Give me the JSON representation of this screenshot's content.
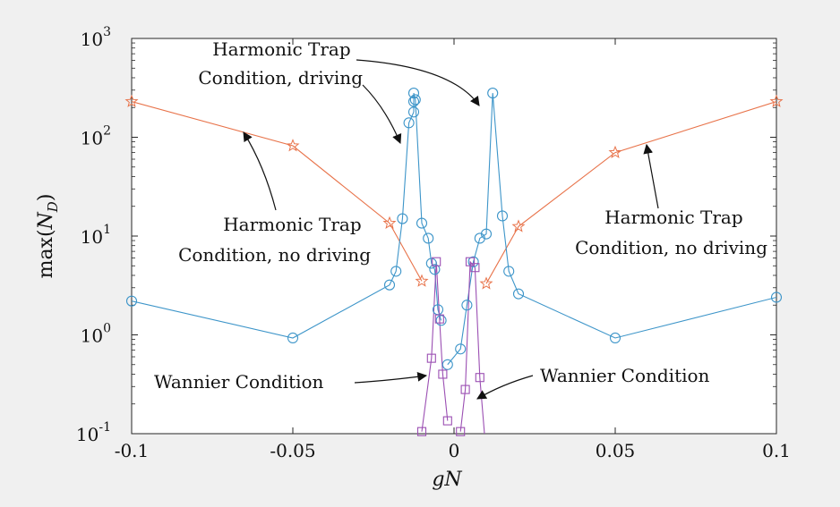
{
  "chart_data": {
    "type": "line",
    "title": "",
    "xlabel": "gN",
    "ylabel": "max(N_D)",
    "ylabel_parts": {
      "prefix": "max(",
      "var": "N",
      "sub": "D",
      "suffix": ")"
    },
    "xlim": [
      -0.1,
      0.1
    ],
    "ylim": [
      0.1,
      1000
    ],
    "yscale": "log",
    "grid": false,
    "legend": "none",
    "xticks": [
      {
        "value": -0.1,
        "label": "-0.1"
      },
      {
        "value": -0.05,
        "label": "-0.05"
      },
      {
        "value": 0,
        "label": "0"
      },
      {
        "value": 0.05,
        "label": "0.05"
      },
      {
        "value": 0.1,
        "label": "0.1"
      }
    ],
    "yticks": [
      {
        "value": 0.1,
        "base": "10",
        "exp": "-1"
      },
      {
        "value": 1,
        "base": "10",
        "exp": "0"
      },
      {
        "value": 10,
        "base": "10",
        "exp": "1"
      },
      {
        "value": 100,
        "base": "10",
        "exp": "2"
      },
      {
        "value": 1000,
        "base": "10",
        "exp": "3"
      }
    ],
    "series": [
      {
        "id": "harmonic-no-driving-left",
        "marker": "star",
        "color": "#e8734a",
        "x": [
          -0.1,
          -0.05,
          -0.02,
          -0.01
        ],
        "y": [
          230,
          82,
          13.5,
          3.5
        ]
      },
      {
        "id": "harmonic-no-driving-right",
        "marker": "star",
        "color": "#e8734a",
        "x": [
          0.01,
          0.02,
          0.05,
          0.1
        ],
        "y": [
          3.3,
          12.5,
          70,
          230
        ]
      },
      {
        "id": "harmonic-driving-left",
        "marker": "circle",
        "color": "#3d95c9",
        "x": [
          -0.1,
          -0.05,
          -0.02,
          -0.018,
          -0.016,
          -0.014,
          -0.0125,
          -0.0125,
          -0.0125,
          -0.012,
          -0.01,
          -0.008,
          -0.007,
          -0.006,
          -0.005,
          -0.004
        ],
        "y": [
          2.2,
          0.93,
          3.2,
          4.4,
          15,
          140,
          180,
          230,
          280,
          240,
          13.5,
          9.5,
          5.3,
          4.6,
          1.8,
          1.4
        ]
      },
      {
        "id": "harmonic-driving-right",
        "marker": "circle",
        "color": "#3d95c9",
        "x": [
          -0.002,
          0.002,
          0.004,
          0.006,
          0.008,
          0.01,
          0.012,
          0.015,
          0.017,
          0.02,
          0.05,
          0.1
        ],
        "y": [
          0.5,
          0.72,
          2.0,
          5.5,
          9.5,
          10.5,
          280,
          16,
          4.4,
          2.6,
          0.93,
          2.4
        ]
      },
      {
        "id": "wannier-left",
        "marker": "square",
        "color": "#9b4fb3",
        "x": [
          -0.01,
          -0.007,
          -0.0055,
          -0.0045,
          -0.0035,
          -0.002
        ],
        "y": [
          0.105,
          0.58,
          5.5,
          1.45,
          0.4,
          0.135
        ]
      },
      {
        "id": "wannier-right",
        "marker": "square",
        "color": "#9b4fb3",
        "x": [
          0.002,
          0.0035,
          0.005,
          0.0065,
          0.008,
          0.0095
        ],
        "y": [
          0.105,
          0.28,
          5.5,
          4.8,
          0.37,
          0.095
        ]
      }
    ],
    "annotations": [
      {
        "id": "label-harmonic-driving-left",
        "lines": [
          "Harmonic Trap",
          "Condition, driving"
        ]
      },
      {
        "id": "label-harmonic-no-driving-left",
        "lines": [
          "Harmonic Trap",
          "Condition, no driving"
        ]
      },
      {
        "id": "label-harmonic-no-driving-right",
        "lines": [
          "Harmonic Trap",
          "Condition, no driving"
        ]
      },
      {
        "id": "label-wannier-left",
        "lines": [
          "Wannier Condition"
        ]
      },
      {
        "id": "label-wannier-right",
        "lines": [
          "Wannier Condition"
        ]
      }
    ]
  }
}
